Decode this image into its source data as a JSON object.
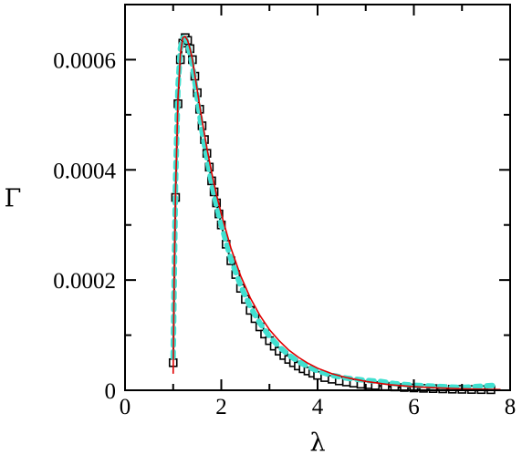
{
  "chart_data": {
    "type": "line",
    "title": "",
    "xlabel": "λ",
    "ylabel": "Γ",
    "xlim": [
      0,
      8
    ],
    "ylim": [
      0,
      0.0007
    ],
    "x_ticks": [
      0,
      2,
      4,
      6,
      8
    ],
    "x_tick_labels": [
      "0",
      "2",
      "4",
      "6",
      "8"
    ],
    "y_ticks": [
      0,
      0.0002,
      0.0004,
      0.0006
    ],
    "y_tick_labels": [
      "0",
      "0.0002",
      "0.0004",
      "0.0006"
    ],
    "grid": false,
    "legend": "none",
    "series": [
      {
        "style": "squares",
        "color": "#000000",
        "x": [
          1.0,
          1.05,
          1.1,
          1.15,
          1.2,
          1.25,
          1.3,
          1.35,
          1.4,
          1.45,
          1.5,
          1.55,
          1.6,
          1.65,
          1.7,
          1.75,
          1.8,
          1.85,
          1.9,
          1.95,
          2.0,
          2.1,
          2.2,
          2.3,
          2.4,
          2.5,
          2.6,
          2.7,
          2.8,
          2.9,
          3.0,
          3.1,
          3.2,
          3.3,
          3.4,
          3.5,
          3.6,
          3.7,
          3.8,
          3.9,
          4.0,
          4.15,
          4.3,
          4.45,
          4.6,
          4.75,
          4.9,
          5.05,
          5.2,
          5.4,
          5.6,
          5.8,
          6.0,
          6.2,
          6.4,
          6.6,
          6.8,
          7.0,
          7.2,
          7.4,
          7.6
        ],
        "y": [
          5e-05,
          0.00035,
          0.00052,
          0.0006,
          0.00063,
          0.00064,
          0.000635,
          0.00062,
          0.0006,
          0.00057,
          0.00054,
          0.00051,
          0.00048,
          0.000455,
          0.00043,
          0.000405,
          0.00038,
          0.00036,
          0.00034,
          0.00032,
          0.0003,
          0.000265,
          0.000235,
          0.00021,
          0.000185,
          0.000165,
          0.000145,
          0.00013,
          0.000115,
          0.000102,
          9e-05,
          8e-05,
          7.1e-05,
          6.3e-05,
          5.6e-05,
          5e-05,
          4.4e-05,
          3.9e-05,
          3.5e-05,
          3.1e-05,
          2.7e-05,
          2.3e-05,
          2e-05,
          1.7e-05,
          1.5e-05,
          1.3e-05,
          1.1e-05,
          1e-05,
          8.5e-06,
          7.2e-06,
          6e-06,
          5e-06,
          4.2e-06,
          3.5e-06,
          3e-06,
          2.5e-06,
          2e-06,
          1.7e-06,
          1.4e-06,
          1.2e-06,
          1e-06
        ]
      },
      {
        "style": "dashed",
        "color": "#40e0d0",
        "x": [
          1.0,
          1.05,
          1.1,
          1.15,
          1.2,
          1.25,
          1.3,
          1.35,
          1.4,
          1.5,
          1.6,
          1.7,
          1.8,
          1.9,
          2.0,
          2.2,
          2.4,
          2.6,
          2.8,
          3.0,
          3.2,
          3.4,
          3.6,
          3.8,
          4.0,
          4.3,
          4.6,
          5.0,
          5.3,
          5.6,
          6.0,
          6.5,
          7.0,
          7.5,
          7.7
        ],
        "y": [
          6e-05,
          0.00038,
          0.00055,
          0.00062,
          0.00064,
          0.000638,
          0.00063,
          0.00061,
          0.00059,
          0.00053,
          0.00047,
          0.000422,
          0.000375,
          0.000335,
          0.0003,
          0.000238,
          0.00019,
          0.000152,
          0.000122,
          9.8e-05,
          7.9e-05,
          6.4e-05,
          5.2e-05,
          4.3e-05,
          3.5e-05,
          2.7e-05,
          2.2e-05,
          1.8e-05,
          1.6e-05,
          1.2e-05,
          9e-06,
          7e-06,
          5e-06,
          8e-06,
          9e-06
        ]
      },
      {
        "style": "line",
        "color": "#e00000",
        "x": [
          1.0,
          1.02,
          1.05,
          1.1,
          1.15,
          1.2,
          1.25,
          1.3,
          1.35,
          1.4,
          1.5,
          1.6,
          1.7,
          1.8,
          1.9,
          2.0,
          2.2,
          2.4,
          2.6,
          2.8,
          3.0,
          3.2,
          3.4,
          3.6,
          3.8,
          4.0,
          4.3,
          4.6,
          5.0,
          5.5,
          6.0,
          6.5,
          7.0,
          7.5,
          7.8
        ],
        "y": [
          3e-05,
          0.0002,
          0.00036,
          0.00053,
          0.00061,
          0.00064,
          0.000642,
          0.000635,
          0.00062,
          0.0006,
          0.000545,
          0.00049,
          0.00044,
          0.000395,
          0.000355,
          0.00032,
          0.000258,
          0.000208,
          0.000168,
          0.000136,
          0.00011,
          9e-05,
          7.3e-05,
          6e-05,
          4.9e-05,
          4e-05,
          3e-05,
          2.3e-05,
          1.6e-05,
          1e-05,
          6.5e-06,
          4.2e-06,
          2.7e-06,
          1.8e-06,
          1.4e-06
        ]
      }
    ]
  }
}
